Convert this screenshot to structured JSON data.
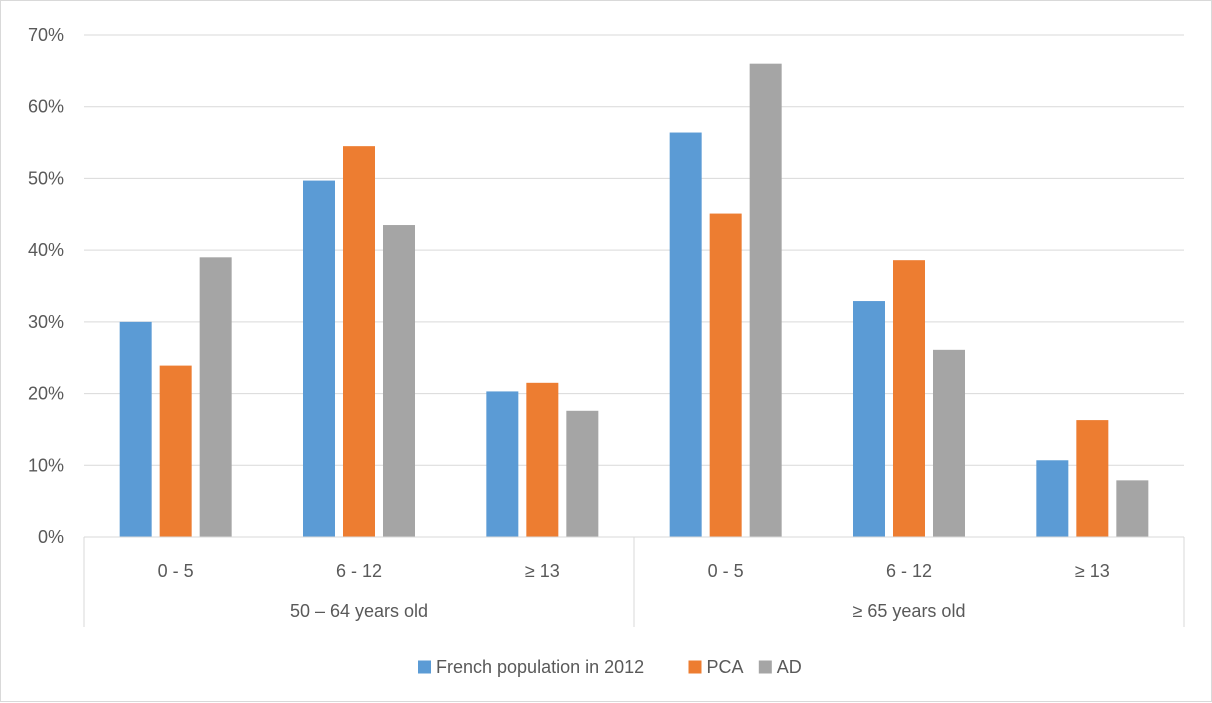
{
  "chart_data": {
    "type": "bar",
    "title": "",
    "xlabel": "",
    "ylabel": "",
    "ylim": [
      0,
      0.7
    ],
    "y_ticks": [
      "0%",
      "10%",
      "20%",
      "30%",
      "40%",
      "50%",
      "60%",
      "70%"
    ],
    "groups": [
      {
        "label": "50 – 64 years old",
        "categories": [
          "0 - 5",
          "6 - 12",
          "≥ 13"
        ]
      },
      {
        "label": "≥ 65 years old",
        "categories": [
          "0 - 5",
          "6 - 12",
          "≥ 13"
        ]
      }
    ],
    "categories": [
      "0 - 5",
      "6 - 12",
      "≥ 13",
      "0 - 5",
      "6 - 12",
      "≥ 13"
    ],
    "series": [
      {
        "name": "French population in 2012",
        "color": "#5b9bd5",
        "values": [
          0.3,
          0.497,
          0.203,
          0.564,
          0.329,
          0.107
        ]
      },
      {
        "name": "PCA",
        "color": "#ed7d31",
        "values": [
          0.239,
          0.545,
          0.215,
          0.451,
          0.386,
          0.163
        ]
      },
      {
        "name": "AD",
        "color": "#a5a5a5",
        "values": [
          0.39,
          0.435,
          0.176,
          0.66,
          0.261,
          0.079
        ]
      }
    ],
    "grid": true,
    "legend_position": "bottom"
  }
}
